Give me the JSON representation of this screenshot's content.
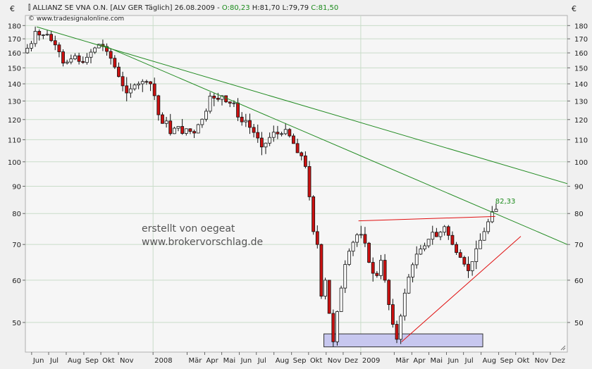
{
  "header": {
    "title_prefix": "ALLIANZ SE VNA O.N. [ALV GER  Täglich] 26.08.2009 - ",
    "open": "O:80,23",
    "high": "H:81,70",
    "low": "L:79,79",
    "close": "C:81,50",
    "source": "© www.tradesignalonline.com"
  },
  "currency_label": "€",
  "annotation_text": [
    "erstellt von oegeat",
    "www.brokervorschlag.de"
  ],
  "colors": {
    "background": "#f0f0f0",
    "plot_bg": "#f6f6f6",
    "grid": "#c9dcc9",
    "green": "#1a8a1a",
    "trend_line": "#228b22",
    "red_line": "#e01010",
    "candle_up": "#ffffff",
    "candle_down": "#cc1111",
    "support_box": "#c7c7ef"
  },
  "chart_data": {
    "type": "candlestick",
    "title": "ALLIANZ SE VNA O.N. [ALV GER  Täglich] 26.08.2009",
    "ylabel": "€",
    "y_scale": "log",
    "ylim": [
      44,
      188
    ],
    "y_ticks": [
      50,
      60,
      70,
      80,
      90,
      100,
      110,
      120,
      130,
      140,
      150,
      160,
      170,
      180
    ],
    "grid": true,
    "x_range": [
      "2007-05-21",
      "2009-12-31"
    ],
    "x_ticks": [
      {
        "label": "Jun",
        "date": "2007-06-01"
      },
      {
        "label": "Jul",
        "date": "2007-07-01"
      },
      {
        "label": "Aug",
        "date": "2007-08-01"
      },
      {
        "label": "Sep",
        "date": "2007-09-01"
      },
      {
        "label": "Okt",
        "date": "2007-10-01"
      },
      {
        "label": "Nov",
        "date": "2007-11-01"
      },
      {
        "label": "2008",
        "date": "2008-01-01"
      },
      {
        "label": "Mär",
        "date": "2008-03-01"
      },
      {
        "label": "Apr",
        "date": "2008-04-01"
      },
      {
        "label": "Mai",
        "date": "2008-05-01"
      },
      {
        "label": "Jun",
        "date": "2008-06-01"
      },
      {
        "label": "Jul",
        "date": "2008-07-01"
      },
      {
        "label": "Aug",
        "date": "2008-08-01"
      },
      {
        "label": "Sep",
        "date": "2008-09-01"
      },
      {
        "label": "Okt",
        "date": "2008-10-01"
      },
      {
        "label": "Nov",
        "date": "2008-11-01"
      },
      {
        "label": "Dez",
        "date": "2008-12-01"
      },
      {
        "label": "2009",
        "date": "2009-01-01"
      },
      {
        "label": "Mär",
        "date": "2009-03-01"
      },
      {
        "label": "Apr",
        "date": "2009-04-01"
      },
      {
        "label": "Mai",
        "date": "2009-05-01"
      },
      {
        "label": "Jun",
        "date": "2009-06-01"
      },
      {
        "label": "Jul",
        "date": "2009-07-01"
      },
      {
        "label": "Aug",
        "date": "2009-08-01"
      },
      {
        "label": "Sep",
        "date": "2009-09-01"
      },
      {
        "label": "Okt",
        "date": "2009-10-01"
      },
      {
        "label": "Nov",
        "date": "2009-11-01"
      },
      {
        "label": "Dez",
        "date": "2009-12-01"
      }
    ],
    "price_path": [
      [
        "2007-05-21",
        160
      ],
      [
        "2007-06-05",
        167
      ],
      [
        "2007-06-10",
        176
      ],
      [
        "2007-06-20",
        172
      ],
      [
        "2007-07-01",
        174
      ],
      [
        "2007-07-10",
        168
      ],
      [
        "2007-07-20",
        164
      ],
      [
        "2007-07-31",
        152
      ],
      [
        "2007-08-10",
        155
      ],
      [
        "2007-08-20",
        158
      ],
      [
        "2007-08-31",
        152
      ],
      [
        "2007-09-10",
        157
      ],
      [
        "2007-09-20",
        162
      ],
      [
        "2007-10-01",
        166
      ],
      [
        "2007-10-10",
        164
      ],
      [
        "2007-10-20",
        158
      ],
      [
        "2007-11-01",
        148
      ],
      [
        "2007-11-10",
        140
      ],
      [
        "2007-11-20",
        134
      ],
      [
        "2007-11-30",
        139
      ],
      [
        "2007-12-10",
        140
      ],
      [
        "2007-12-20",
        142
      ],
      [
        "2007-12-31",
        140
      ],
      [
        "2008-01-10",
        130
      ],
      [
        "2008-01-18",
        115
      ],
      [
        "2008-01-25",
        122
      ],
      [
        "2008-02-05",
        112
      ],
      [
        "2008-02-15",
        118
      ],
      [
        "2008-02-25",
        113
      ],
      [
        "2008-03-05",
        116
      ],
      [
        "2008-03-15",
        112
      ],
      [
        "2008-03-25",
        118
      ],
      [
        "2008-04-05",
        122
      ],
      [
        "2008-04-15",
        134
      ],
      [
        "2008-04-25",
        130
      ],
      [
        "2008-05-05",
        133
      ],
      [
        "2008-05-15",
        128
      ],
      [
        "2008-05-25",
        130
      ],
      [
        "2008-06-05",
        118
      ],
      [
        "2008-06-15",
        120
      ],
      [
        "2008-06-25",
        115
      ],
      [
        "2008-07-05",
        112
      ],
      [
        "2008-07-15",
        106
      ],
      [
        "2008-07-25",
        110
      ],
      [
        "2008-08-05",
        114
      ],
      [
        "2008-08-15",
        112
      ],
      [
        "2008-08-25",
        115
      ],
      [
        "2008-09-05",
        110
      ],
      [
        "2008-09-15",
        104
      ],
      [
        "2008-09-25",
        102
      ],
      [
        "2008-10-01",
        96
      ],
      [
        "2008-10-07",
        84
      ],
      [
        "2008-10-13",
        74
      ],
      [
        "2008-10-20",
        70
      ],
      [
        "2008-10-27",
        56
      ],
      [
        "2008-11-03",
        60
      ],
      [
        "2008-11-10",
        52
      ],
      [
        "2008-11-17",
        46
      ],
      [
        "2008-11-21",
        50
      ],
      [
        "2008-12-01",
        58
      ],
      [
        "2008-12-10",
        66
      ],
      [
        "2008-12-20",
        70
      ],
      [
        "2009-01-01",
        74
      ],
      [
        "2009-01-10",
        72
      ],
      [
        "2009-01-20",
        64
      ],
      [
        "2009-01-31",
        60
      ],
      [
        "2009-02-10",
        66
      ],
      [
        "2009-02-20",
        56
      ],
      [
        "2009-03-01",
        50
      ],
      [
        "2009-03-06",
        48
      ],
      [
        "2009-03-10",
        46
      ],
      [
        "2009-03-20",
        55
      ],
      [
        "2009-04-01",
        62
      ],
      [
        "2009-04-15",
        68
      ],
      [
        "2009-04-30",
        70
      ],
      [
        "2009-05-10",
        74
      ],
      [
        "2009-05-20",
        72
      ],
      [
        "2009-05-31",
        76
      ],
      [
        "2009-06-10",
        72
      ],
      [
        "2009-06-20",
        68
      ],
      [
        "2009-06-30",
        66
      ],
      [
        "2009-07-07",
        64
      ],
      [
        "2009-07-15",
        62
      ],
      [
        "2009-07-25",
        68
      ],
      [
        "2009-08-05",
        72
      ],
      [
        "2009-08-15",
        76
      ],
      [
        "2009-08-20",
        79
      ],
      [
        "2009-08-26",
        81.5
      ]
    ],
    "trend_lines": [
      {
        "name": "upper-trendline",
        "color": "#228b22",
        "from": [
          "2007-06-10",
          179
        ],
        "to": [
          "2009-12-31",
          91
        ]
      },
      {
        "name": "lower-trendline",
        "color": "#228b22",
        "from": [
          "2007-10-01",
          166
        ],
        "to": [
          "2009-12-31",
          70
        ]
      },
      {
        "name": "resistance-line",
        "color": "#e01010",
        "from": [
          "2008-12-28",
          77.5
        ],
        "to": [
          "2009-08-26",
          79
        ]
      },
      {
        "name": "support-rising-line",
        "color": "#e01010",
        "from": [
          "2009-03-14",
          46
        ],
        "to": [
          "2009-10-10",
          72.5
        ]
      }
    ],
    "support_box": {
      "from": "2008-10-28",
      "to": "2009-08-04",
      "low": 45,
      "high": 47.6
    },
    "annotations": [
      {
        "text": "82,33",
        "date": "2009-08-31",
        "value": 82.33
      }
    ]
  }
}
